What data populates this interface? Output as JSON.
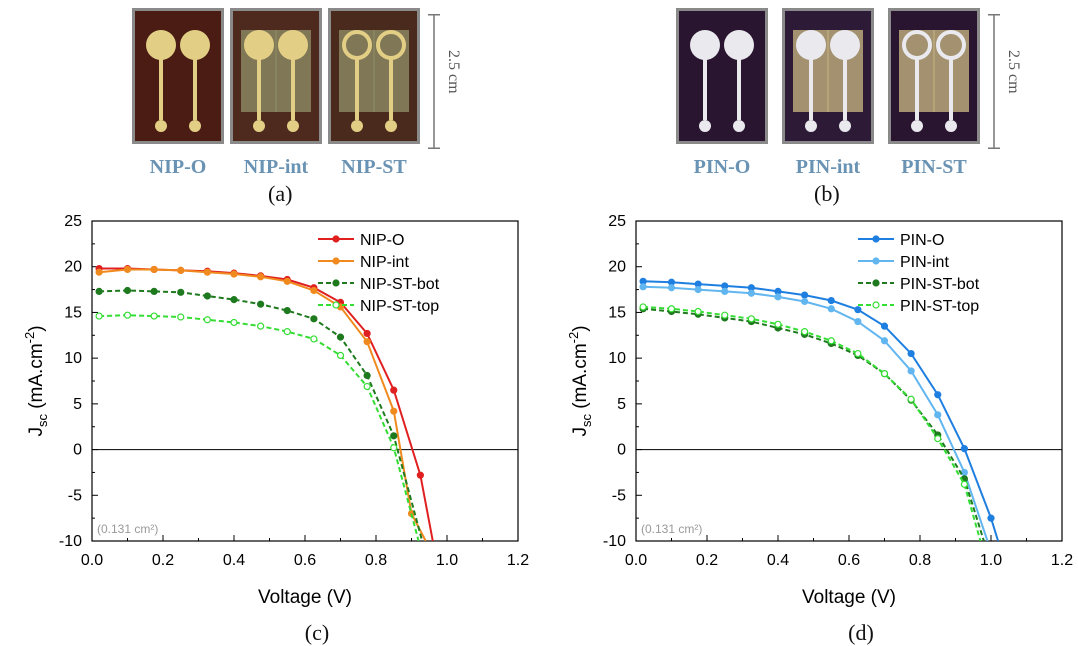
{
  "photos": {
    "left": {
      "samples": [
        {
          "label": "NIP-O",
          "style": "O",
          "bg": "#4a1c14",
          "pad": "#e2cf85"
        },
        {
          "label": "NIP-int",
          "style": "int",
          "bg": "#4e2a1e",
          "pad": "#e2cf85"
        },
        {
          "label": "NIP-ST",
          "style": "ST",
          "bg": "#4a2a1c",
          "pad": "#e2cf85"
        }
      ],
      "scale_label": "2.5 cm",
      "panel": "(a)"
    },
    "right": {
      "samples": [
        {
          "label": "PIN-O",
          "style": "O",
          "bg": "#2a1530",
          "pad": "#e9e9ee"
        },
        {
          "label": "PIN-int",
          "style": "int",
          "bg": "#2d1a36",
          "pad": "#e9e9ee"
        },
        {
          "label": "PIN-ST",
          "style": "ST",
          "bg": "#2a1530",
          "pad": "#e9e9ee"
        }
      ],
      "scale_label": "2.5 cm",
      "panel": "(b)"
    }
  },
  "chart_data": [
    {
      "type": "line",
      "panel": "(c)",
      "xlabel": "Voltage (V)",
      "ylabel": "J",
      "ylabel_sub": "sc",
      "ylabel_unit": "(mA.cm",
      "ylabel_sup": "-2",
      "ylabel_end": ")",
      "xlim": [
        0,
        1.2
      ],
      "ylim": [
        -10,
        25
      ],
      "xticks": [
        "0.0",
        "0.2",
        "0.4",
        "0.6",
        "0.8",
        "1.0",
        "1.2"
      ],
      "yticks": [
        "-10",
        "-5",
        "0",
        "5",
        "10",
        "15",
        "20",
        "25"
      ],
      "annotation": "(0.131 cm²)",
      "legend_position": "top-right",
      "series": [
        {
          "name": "NIP-O",
          "color": "#e02020",
          "dash": false,
          "filled": true,
          "x": [
            0.02,
            0.1,
            0.175,
            0.25,
            0.325,
            0.4,
            0.475,
            0.55,
            0.625,
            0.7,
            0.775,
            0.85,
            0.925,
            0.96
          ],
          "y": [
            19.8,
            19.8,
            19.7,
            19.6,
            19.5,
            19.3,
            19.0,
            18.6,
            17.7,
            16.1,
            12.7,
            6.5,
            -2.8,
            -10
          ]
        },
        {
          "name": "NIP-int",
          "color": "#f08a1e",
          "dash": false,
          "filled": true,
          "x": [
            0.02,
            0.1,
            0.175,
            0.25,
            0.325,
            0.4,
            0.475,
            0.55,
            0.625,
            0.7,
            0.775,
            0.85,
            0.9,
            0.94
          ],
          "y": [
            19.4,
            19.7,
            19.7,
            19.6,
            19.4,
            19.2,
            18.9,
            18.4,
            17.4,
            15.6,
            11.8,
            4.2,
            -7.0,
            -10
          ]
        },
        {
          "name": "NIP-ST-bot",
          "color": "#1f7a1f",
          "dash": true,
          "filled": true,
          "x": [
            0.02,
            0.1,
            0.175,
            0.25,
            0.325,
            0.4,
            0.475,
            0.55,
            0.625,
            0.7,
            0.775,
            0.85,
            0.93
          ],
          "y": [
            17.3,
            17.4,
            17.3,
            17.2,
            16.8,
            16.4,
            15.9,
            15.2,
            14.3,
            12.3,
            8.1,
            1.5,
            -10
          ]
        },
        {
          "name": "NIP-ST-top",
          "color": "#33dd33",
          "dash": true,
          "filled": false,
          "x": [
            0.02,
            0.1,
            0.175,
            0.25,
            0.325,
            0.4,
            0.475,
            0.55,
            0.625,
            0.7,
            0.775,
            0.85,
            0.92
          ],
          "y": [
            14.6,
            14.7,
            14.6,
            14.5,
            14.2,
            13.9,
            13.5,
            12.9,
            12.1,
            10.3,
            6.9,
            0.2,
            -10
          ]
        }
      ]
    },
    {
      "type": "line",
      "panel": "(d)",
      "xlabel": "Voltage (V)",
      "ylabel": "J",
      "ylabel_sub": "sc",
      "ylabel_unit": "(mA.cm",
      "ylabel_sup": "-2",
      "ylabel_end": ")",
      "xlim": [
        0,
        1.2
      ],
      "ylim": [
        -10,
        25
      ],
      "xticks": [
        "0.0",
        "0.2",
        "0.4",
        "0.6",
        "0.8",
        "1.0",
        "1.2"
      ],
      "yticks": [
        "-10",
        "-5",
        "0",
        "5",
        "10",
        "15",
        "20",
        "25"
      ],
      "annotation": "(0.131 cm²)",
      "legend_position": "top-right",
      "series": [
        {
          "name": "PIN-O",
          "color": "#1f7fe0",
          "dash": false,
          "filled": true,
          "x": [
            0.02,
            0.1,
            0.175,
            0.25,
            0.325,
            0.4,
            0.475,
            0.55,
            0.625,
            0.7,
            0.775,
            0.85,
            0.925,
            1.0,
            1.02
          ],
          "y": [
            18.4,
            18.3,
            18.1,
            17.9,
            17.7,
            17.3,
            16.9,
            16.3,
            15.3,
            13.5,
            10.5,
            6.0,
            0.1,
            -7.5,
            -10
          ]
        },
        {
          "name": "PIN-int",
          "color": "#62b6f0",
          "dash": false,
          "filled": true,
          "x": [
            0.02,
            0.1,
            0.175,
            0.25,
            0.325,
            0.4,
            0.475,
            0.55,
            0.625,
            0.7,
            0.775,
            0.85,
            0.925,
            0.99
          ],
          "y": [
            17.8,
            17.7,
            17.5,
            17.3,
            17.1,
            16.7,
            16.2,
            15.4,
            14.0,
            11.9,
            8.6,
            3.8,
            -2.5,
            -10
          ]
        },
        {
          "name": "PIN-ST-bot",
          "color": "#1f7a1f",
          "dash": true,
          "filled": true,
          "x": [
            0.02,
            0.1,
            0.175,
            0.25,
            0.325,
            0.4,
            0.475,
            0.55,
            0.625,
            0.7,
            0.775,
            0.85,
            0.925,
            0.98
          ],
          "y": [
            15.4,
            15.1,
            14.8,
            14.4,
            14.0,
            13.3,
            12.6,
            11.6,
            10.3,
            8.3,
            5.4,
            1.6,
            -3.2,
            -10
          ]
        },
        {
          "name": "PIN-ST-top",
          "color": "#33dd33",
          "dash": true,
          "filled": false,
          "x": [
            0.02,
            0.1,
            0.175,
            0.25,
            0.325,
            0.4,
            0.475,
            0.55,
            0.625,
            0.7,
            0.775,
            0.85,
            0.925,
            0.97
          ],
          "y": [
            15.6,
            15.4,
            15.1,
            14.7,
            14.3,
            13.7,
            12.9,
            11.9,
            10.5,
            8.3,
            5.5,
            1.2,
            -3.8,
            -10
          ]
        }
      ]
    }
  ]
}
